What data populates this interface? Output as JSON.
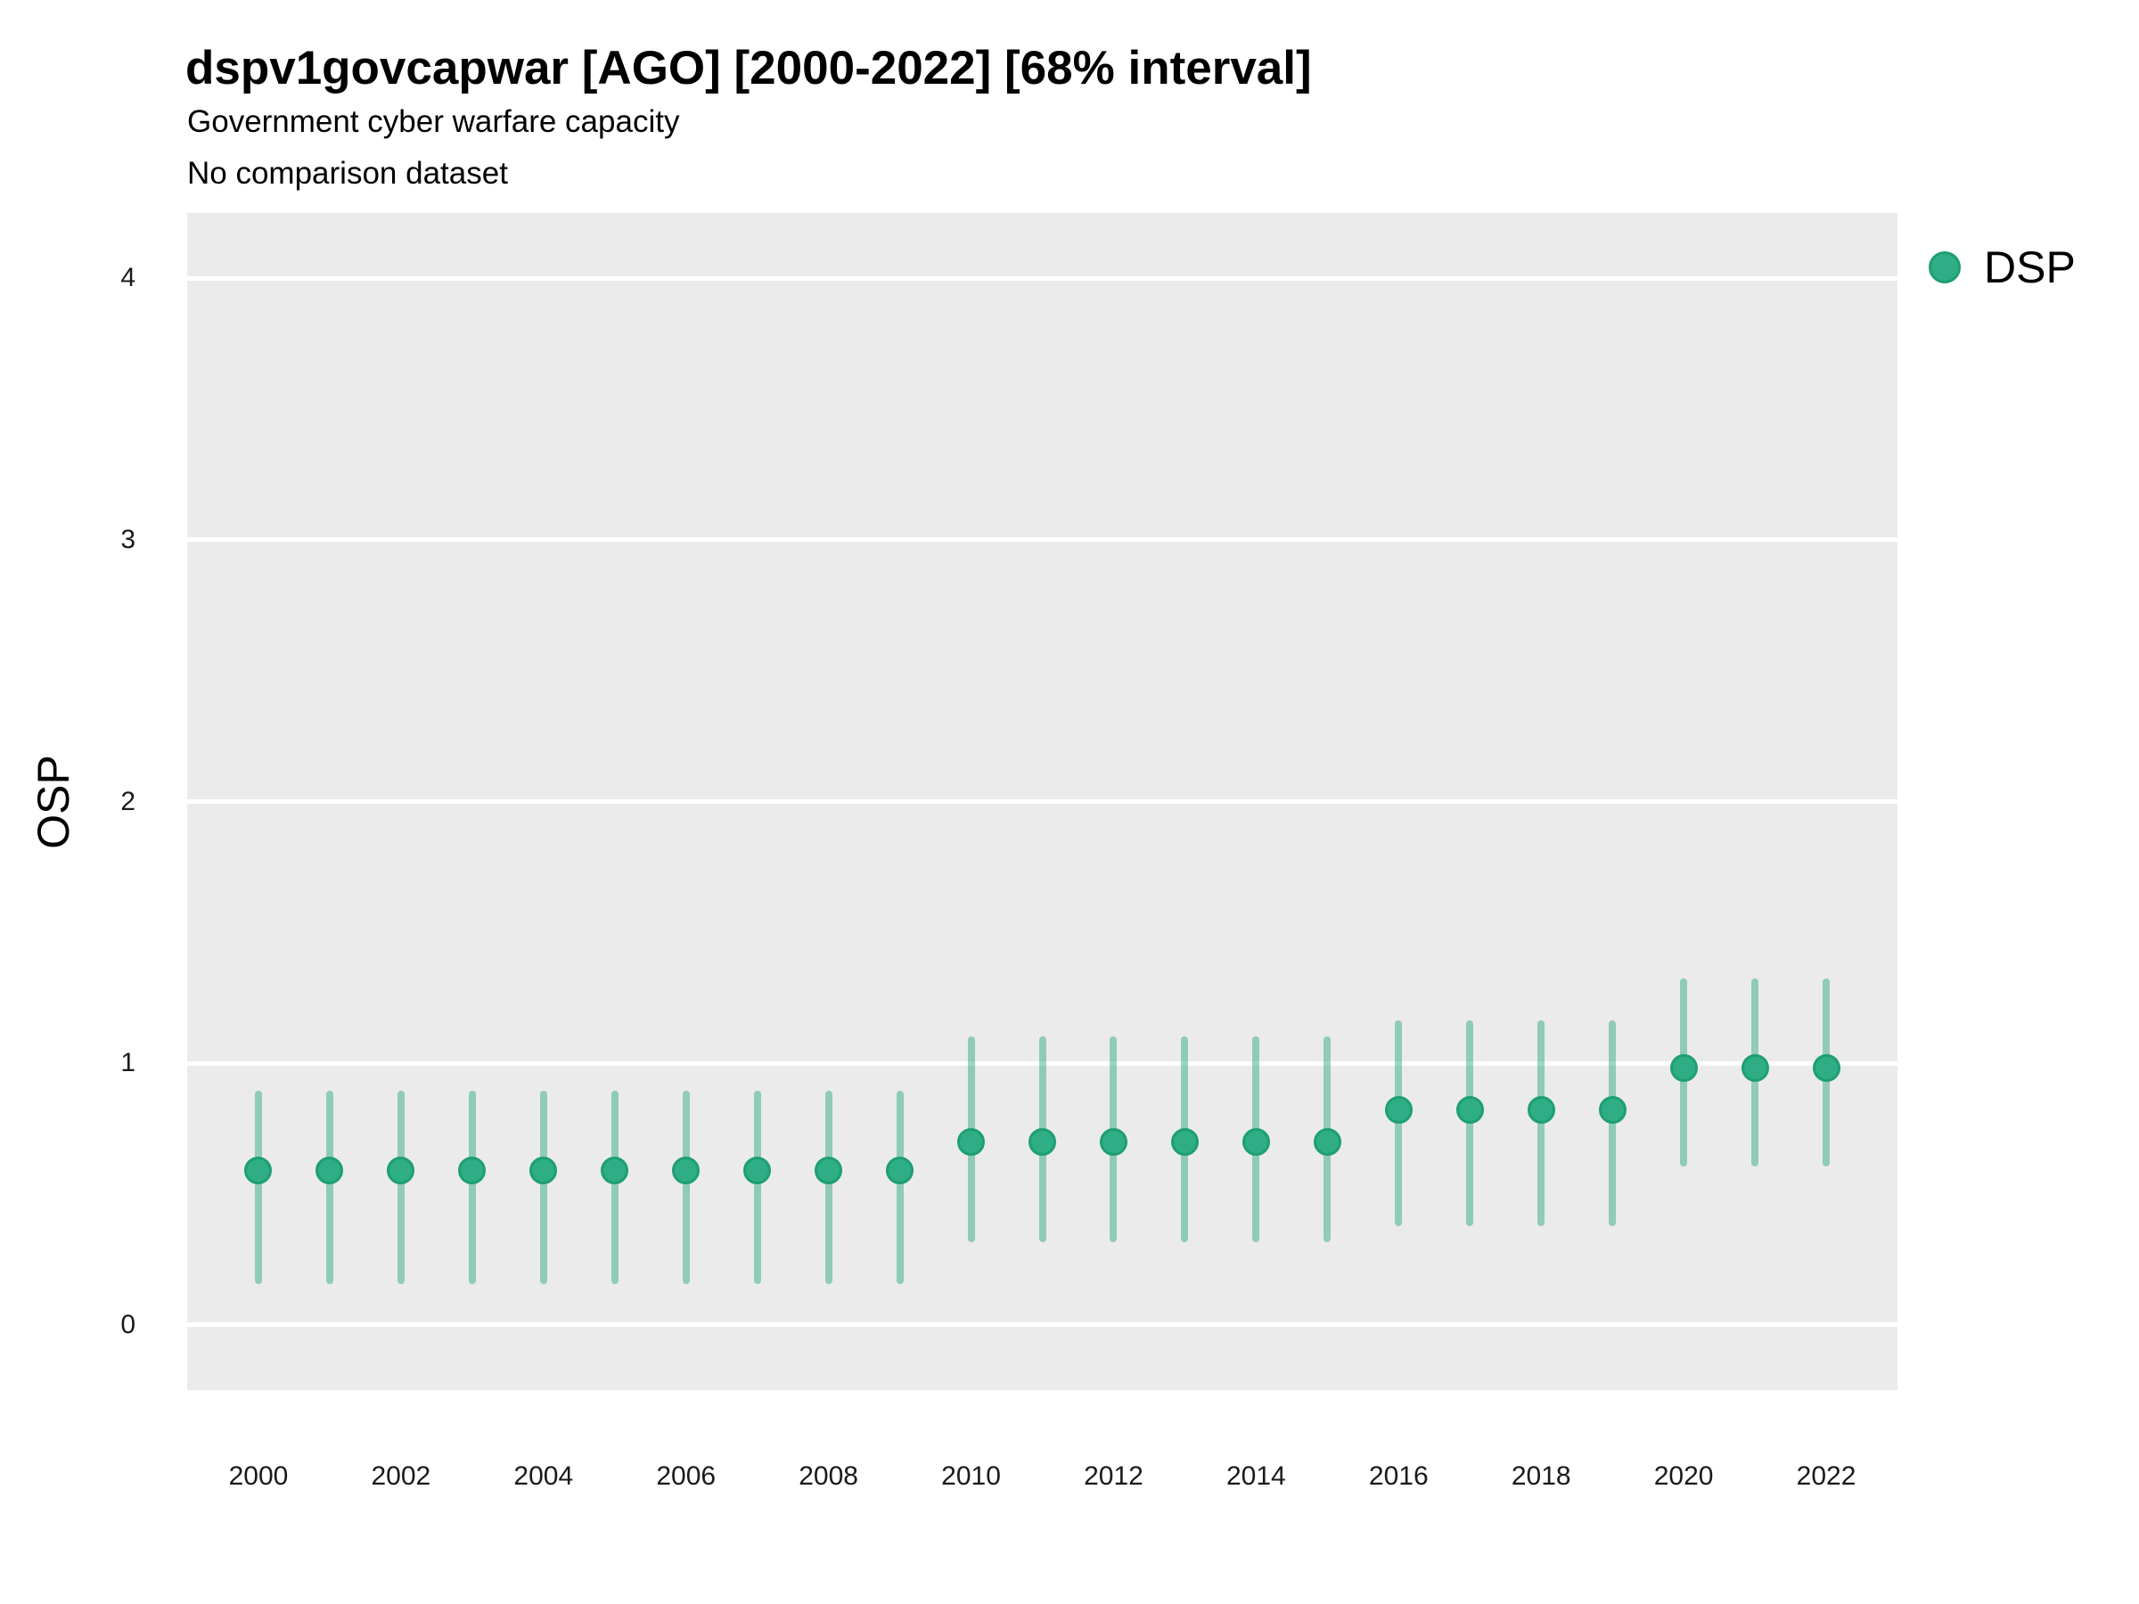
{
  "header": {
    "title": "dspv1govcapwar [AGO] [2000-2022] [68% interval]",
    "subtitle": "Government cyber warfare capacity",
    "note": "No comparison dataset"
  },
  "legend": {
    "position": "right",
    "items": [
      {
        "label": "DSP",
        "marker": "circle",
        "marker_color": "#2fae85"
      }
    ]
  },
  "colors": {
    "panel_bg": "#ebebeb",
    "gridline": "#ffffff",
    "point_fill": "#2fae85",
    "point_stroke": "#1e9e74",
    "interval": "rgba(42,168,126,0.47)",
    "text": "#000000",
    "tick_text": "#1a1a1a"
  },
  "chart_data": {
    "type": "scatter",
    "title": "dspv1govcapwar [AGO] [2000-2022] [68% interval]",
    "subtitle": "Government cyber warfare capacity",
    "note": "No comparison dataset",
    "xlabel": "",
    "ylabel": "OSP",
    "xlim": [
      1999,
      2023
    ],
    "ylim": [
      -0.25,
      4.25
    ],
    "grid": "major-horizontal",
    "legend_position": "right",
    "x_ticks": [
      2000,
      2002,
      2004,
      2006,
      2008,
      2010,
      2012,
      2014,
      2016,
      2018,
      2020,
      2022
    ],
    "y_ticks": [
      0,
      1,
      2,
      3,
      4
    ],
    "interval_label": "68% interval",
    "series": [
      {
        "name": "DSP",
        "x": [
          2000,
          2001,
          2002,
          2003,
          2004,
          2005,
          2006,
          2007,
          2008,
          2009,
          2010,
          2011,
          2012,
          2013,
          2014,
          2015,
          2016,
          2017,
          2018,
          2019,
          2020,
          2021,
          2022
        ],
        "y": [
          0.59,
          0.59,
          0.59,
          0.59,
          0.59,
          0.59,
          0.59,
          0.59,
          0.59,
          0.59,
          0.7,
          0.7,
          0.7,
          0.7,
          0.7,
          0.7,
          0.82,
          0.82,
          0.82,
          0.82,
          0.98,
          0.98,
          0.98
        ],
        "y_lo": [
          0.17,
          0.17,
          0.17,
          0.17,
          0.17,
          0.17,
          0.17,
          0.17,
          0.17,
          0.17,
          0.33,
          0.33,
          0.33,
          0.33,
          0.33,
          0.33,
          0.39,
          0.39,
          0.39,
          0.39,
          0.62,
          0.62,
          0.62
        ],
        "y_hi": [
          0.88,
          0.88,
          0.88,
          0.88,
          0.88,
          0.88,
          0.88,
          0.88,
          0.88,
          0.88,
          1.09,
          1.09,
          1.09,
          1.09,
          1.09,
          1.09,
          1.15,
          1.15,
          1.15,
          1.15,
          1.31,
          1.31,
          1.31
        ]
      }
    ]
  }
}
